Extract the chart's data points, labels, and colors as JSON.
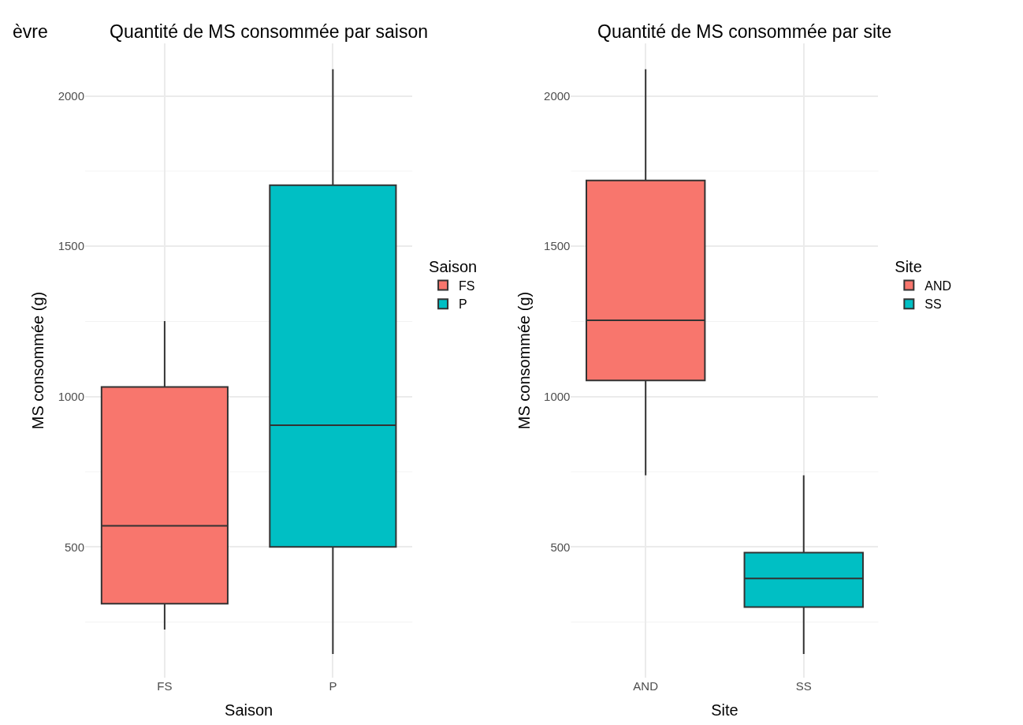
{
  "chart_data": [
    {
      "type": "box",
      "title": "Quantité de MS consommée par saison",
      "xlabel": "Saison",
      "ylabel": "MS consommée (g)",
      "legend_title": "Saison",
      "legend": "right",
      "grid": true,
      "categories": [
        "FS",
        "P"
      ],
      "series": [
        {
          "name": "FS",
          "color": "#f8766d",
          "boxes": [
            {
              "low": 225,
              "q1": 311,
              "median": 570,
              "q3": 1032,
              "high": 1251
            },
            null
          ]
        },
        {
          "name": "P",
          "color": "#00bfc4",
          "boxes": [
            null,
            {
              "low": 144,
              "q1": 500,
              "median": 905,
              "q3": 1703,
              "high": 2089
            }
          ]
        }
      ],
      "ylim": [
        65,
        2175
      ],
      "yticks": [
        500,
        1000,
        1500,
        2000
      ],
      "annotations": [
        "èvre"
      ]
    },
    {
      "type": "box",
      "title": "Quantité de MS consommée par site",
      "xlabel": "Site",
      "ylabel": "MS consommée (g)",
      "legend_title": "Site",
      "legend": "right",
      "grid": true,
      "categories": [
        "AND",
        "SS"
      ],
      "series": [
        {
          "name": "AND",
          "color": "#f8766d",
          "boxes": [
            {
              "low": 738,
              "q1": 1054,
              "median": 1254,
              "q3": 1719,
              "high": 2089
            },
            null
          ]
        },
        {
          "name": "SS",
          "color": "#00bfc4",
          "boxes": [
            null,
            {
              "low": 144,
              "q1": 300,
              "median": 395,
              "q3": 481,
              "high": 738
            }
          ]
        }
      ],
      "ylim": [
        65,
        2175
      ],
      "yticks": [
        500,
        1000,
        1500,
        2000
      ]
    }
  ]
}
